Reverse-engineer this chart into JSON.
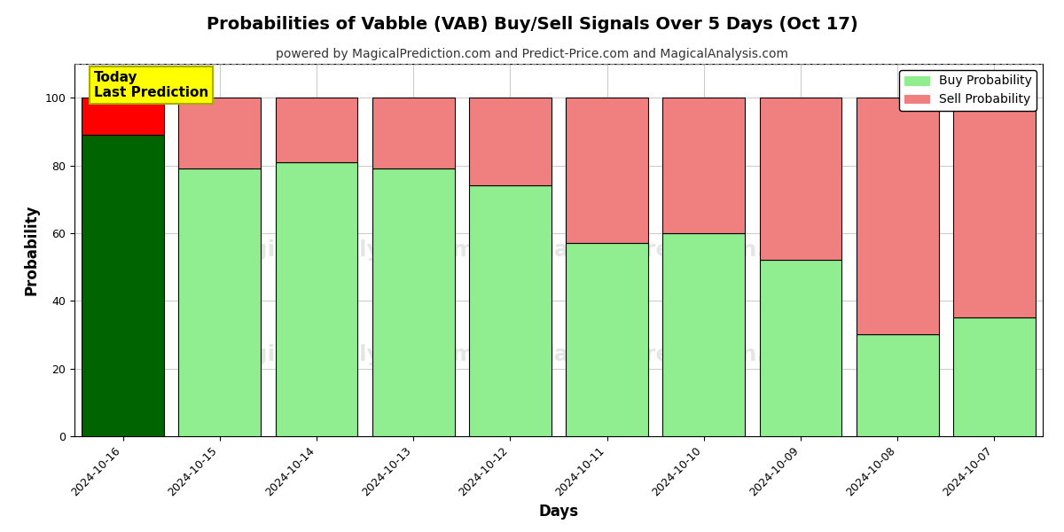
{
  "title": "Probabilities of Vabble (VAB) Buy/Sell Signals Over 5 Days (Oct 17)",
  "subtitle": "powered by MagicalPrediction.com and Predict-Price.com and MagicalAnalysis.com",
  "xlabel": "Days",
  "ylabel": "Probability",
  "dates": [
    "2024-10-16",
    "2024-10-15",
    "2024-10-14",
    "2024-10-13",
    "2024-10-12",
    "2024-10-11",
    "2024-10-10",
    "2024-10-09",
    "2024-10-08",
    "2024-10-07"
  ],
  "buy_values": [
    89,
    79,
    81,
    79,
    74,
    57,
    60,
    52,
    30,
    35
  ],
  "sell_values": [
    11,
    21,
    19,
    21,
    26,
    43,
    40,
    48,
    70,
    65
  ],
  "today_buy_color": "#006400",
  "today_sell_color": "#ff0000",
  "buy_color": "#90EE90",
  "sell_color": "#F08080",
  "bar_edge_color": "#000000",
  "ylim": [
    0,
    110
  ],
  "yticks": [
    0,
    20,
    40,
    60,
    80,
    100
  ],
  "dashed_line_y": 110,
  "annotation_text": "Today\nLast Prediction",
  "annotation_bg": "#ffff00",
  "legend_buy_label": "Buy Probability",
  "legend_sell_label": "Sell Probability",
  "title_fontsize": 14,
  "subtitle_fontsize": 10,
  "axis_label_fontsize": 12,
  "tick_fontsize": 9,
  "legend_fontsize": 10,
  "background_color": "#ffffff",
  "grid_color": "#cccccc"
}
